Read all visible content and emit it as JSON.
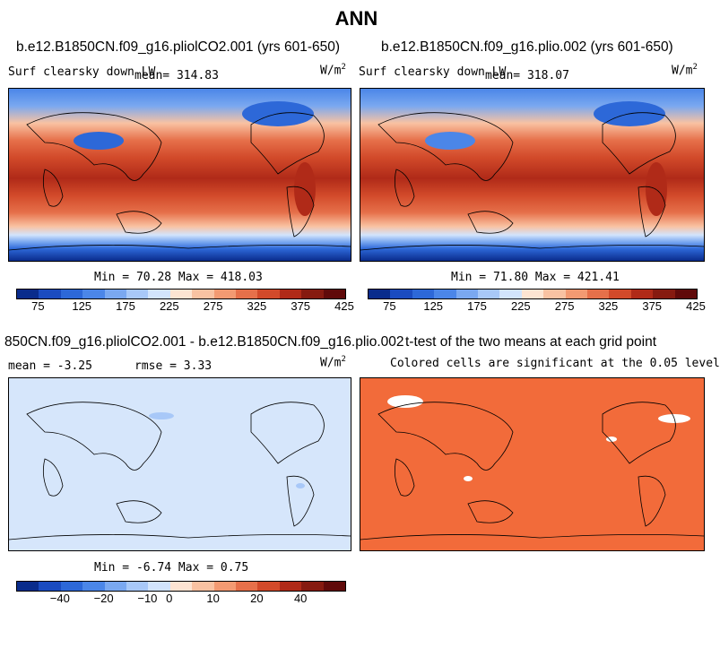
{
  "page": {
    "title": "ANN"
  },
  "panels": [
    {
      "title": "b.e12.B1850CN.f09_g16.pliolCO2.001 (yrs 601-650)",
      "variable": "Surf clearsky down LW",
      "mean_label": "mean= 314.83",
      "units": "W/m",
      "units_exp": "2",
      "stats": "Min =  70.28 Max = 418.03"
    },
    {
      "title": "b.e12.B1850CN.f09_g16.plio.002 (yrs 601-650)",
      "variable": "Surf clearsky down LW",
      "mean_label": "mean= 318.07",
      "units": "W/m",
      "units_exp": "2",
      "stats": "Min =  71.80 Max = 421.41"
    },
    {
      "title": "850CN.f09_g16.pliolCO2.001 - b.e12.B1850CN.f09_g16.plio.002",
      "mean_label": "mean =  -3.25",
      "rmse_label": "rmse =    3.33",
      "units": "W/m",
      "units_exp": "2",
      "stats": "Min =  -6.74 Max =   0.75"
    },
    {
      "title": "t-test of the two means at each grid point",
      "subtitle": "Colored cells are significant at the 0.05 level"
    }
  ],
  "colorbar_abs": {
    "colors": [
      "#0a2c8c",
      "#1a4bc0",
      "#2d68d8",
      "#4b86e8",
      "#7aa8f0",
      "#a8c8f8",
      "#d2e4fc",
      "#fde4d2",
      "#f9c2a2",
      "#f39a72",
      "#e6704a",
      "#d24a2a",
      "#b02a18",
      "#861a10",
      "#600a0a"
    ],
    "ticks": [
      "75",
      "125",
      "175",
      "225",
      "275",
      "325",
      "375",
      "425"
    ]
  },
  "colorbar_diff": {
    "colors": [
      "#0a2c8c",
      "#1a4bc0",
      "#2d68d8",
      "#4b86e8",
      "#7aa8f0",
      "#a8c8f8",
      "#d2e4fc",
      "#fde4d2",
      "#f9c2a2",
      "#f39a72",
      "#e6704a",
      "#d24a2a",
      "#b02a18",
      "#861a10",
      "#600a0a"
    ],
    "ticks": [
      "−40",
      "−20",
      "−10",
      "0",
      "10",
      "20",
      "40"
    ]
  },
  "fills": {
    "diff_background": "#d6e6fb",
    "ttest_background": "#f26b3a"
  }
}
